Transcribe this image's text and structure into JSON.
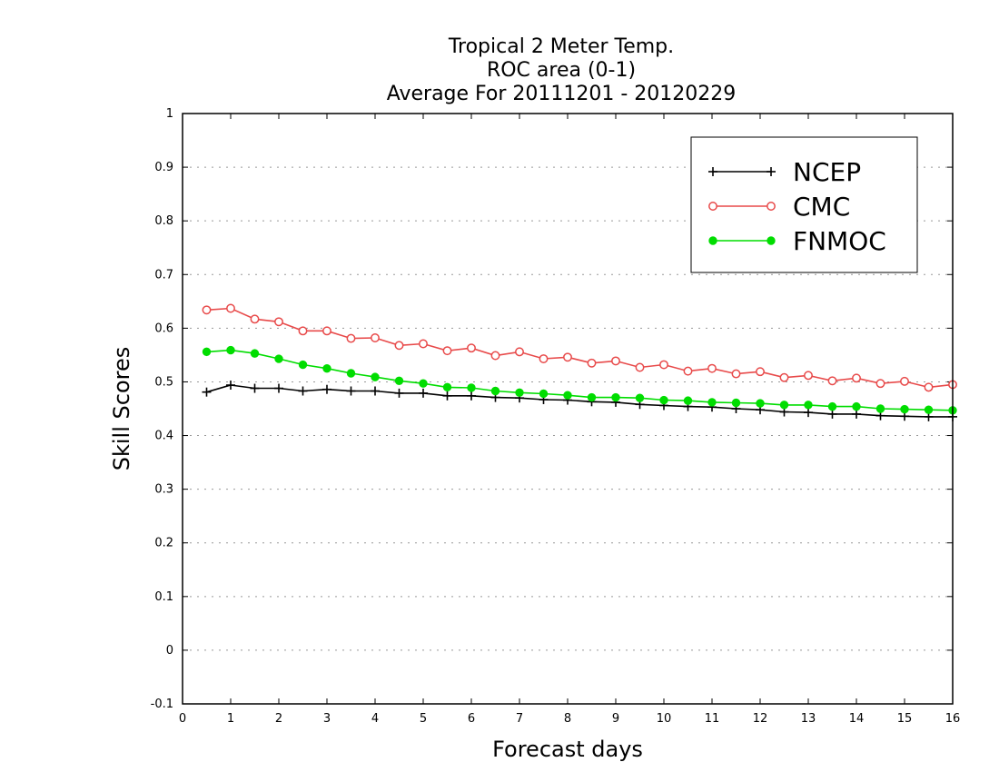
{
  "chart_data": {
    "type": "line",
    "title": [
      "Tropical 2 Meter Temp.",
      "ROC area (0-1)",
      "Average For 20111201 - 20120229"
    ],
    "xlabel": "Forecast days",
    "ylabel": "Skill Scores",
    "xlim": [
      0,
      16
    ],
    "ylim": [
      -0.1,
      1
    ],
    "xticks": [
      "0",
      "1",
      "2",
      "3",
      "4",
      "5",
      "6",
      "7",
      "8",
      "9",
      "10",
      "11",
      "12",
      "13",
      "14",
      "15",
      "16"
    ],
    "yticks": [
      "-0.1",
      "0",
      "0.1",
      "0.2",
      "0.3",
      "0.4",
      "0.5",
      "0.6",
      "0.7",
      "0.8",
      "0.9",
      "1"
    ],
    "grid": "horizontal dotted",
    "legend_position": "top-right",
    "x": [
      0.5,
      1,
      1.5,
      2,
      2.5,
      3,
      3.5,
      4,
      4.5,
      5,
      5.5,
      6,
      6.5,
      7,
      7.5,
      8,
      8.5,
      9,
      9.5,
      10,
      10.5,
      11,
      11.5,
      12,
      12.5,
      13,
      13.5,
      14,
      14.5,
      15,
      15.5,
      16
    ],
    "series": [
      {
        "name": "NCEP",
        "color": "#000000",
        "marker": "plus",
        "values": [
          0.481,
          0.494,
          0.488,
          0.488,
          0.483,
          0.486,
          0.483,
          0.483,
          0.479,
          0.479,
          0.474,
          0.474,
          0.471,
          0.47,
          0.467,
          0.466,
          0.463,
          0.462,
          0.458,
          0.456,
          0.454,
          0.453,
          0.45,
          0.448,
          0.444,
          0.443,
          0.44,
          0.44,
          0.437,
          0.436,
          0.435,
          0.435
        ]
      },
      {
        "name": "CMC",
        "color": "#e84a4a",
        "marker": "open-circle",
        "values": [
          0.634,
          0.637,
          0.617,
          0.612,
          0.595,
          0.595,
          0.581,
          0.582,
          0.568,
          0.571,
          0.558,
          0.563,
          0.549,
          0.556,
          0.543,
          0.546,
          0.535,
          0.539,
          0.527,
          0.532,
          0.52,
          0.525,
          0.515,
          0.519,
          0.508,
          0.512,
          0.502,
          0.507,
          0.497,
          0.501,
          0.49,
          0.495
        ]
      },
      {
        "name": "FNMOC",
        "color": "#00dd00",
        "marker": "filled-circle",
        "values": [
          0.556,
          0.559,
          0.553,
          0.543,
          0.532,
          0.525,
          0.516,
          0.509,
          0.502,
          0.497,
          0.49,
          0.489,
          0.483,
          0.48,
          0.478,
          0.475,
          0.471,
          0.471,
          0.47,
          0.466,
          0.465,
          0.462,
          0.461,
          0.46,
          0.457,
          0.457,
          0.454,
          0.454,
          0.45,
          0.449,
          0.448,
          0.447
        ]
      }
    ]
  }
}
